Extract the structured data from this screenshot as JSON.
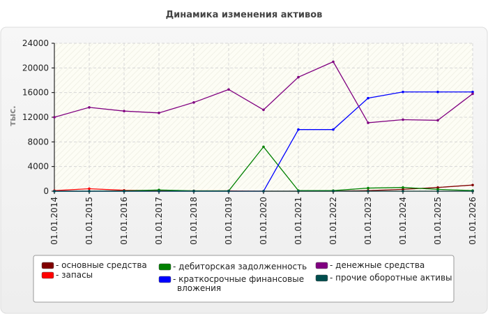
{
  "chart_data": {
    "type": "line",
    "title": "Динамика изменения активов",
    "ylabel": "тыс.",
    "xlabel": "",
    "ylim": [
      0,
      24000
    ],
    "yticks": [
      0,
      4000,
      8000,
      12000,
      16000,
      20000,
      24000
    ],
    "grid": true,
    "legend_position": "bottom",
    "categories": [
      "01.01.2014",
      "01.01.2015",
      "01.01.2016",
      "01.01.2017",
      "01.01.2018",
      "01.01.2019",
      "01.01.2020",
      "01.01.2021",
      "01.01.2022",
      "01.01.2023",
      "01.01.2024",
      "01.01.2025",
      "01.01.2026"
    ],
    "series": [
      {
        "name": "- основные средства",
        "color": "#800000",
        "values": [
          0,
          0,
          0,
          0,
          0,
          0,
          0,
          0,
          0,
          100,
          300,
          600,
          1000
        ]
      },
      {
        "name": "- запасы",
        "color": "#ff0000",
        "values": [
          100,
          400,
          150,
          100,
          50,
          50,
          0,
          0,
          0,
          0,
          0,
          0,
          0
        ]
      },
      {
        "name": "- дебиторская задолженность",
        "color": "#008000",
        "values": [
          0,
          0,
          50,
          200,
          50,
          50,
          7200,
          100,
          100,
          500,
          600,
          300,
          100
        ]
      },
      {
        "name": "- краткосрочные финансовые вложения",
        "color": "#0000ff",
        "values": [
          0,
          0,
          0,
          0,
          0,
          0,
          0,
          10000,
          10000,
          15100,
          16100,
          16100,
          16100
        ]
      },
      {
        "name": "- денежные средства",
        "color": "#800080",
        "values": [
          12000,
          13600,
          13000,
          12700,
          14400,
          16500,
          13200,
          18500,
          21000,
          11100,
          11600,
          11500,
          15800
        ]
      },
      {
        "name": "- прочие оборотные активы",
        "color": "#004d4d",
        "values": [
          0,
          0,
          0,
          0,
          0,
          0,
          0,
          0,
          0,
          0,
          0,
          0,
          0
        ]
      }
    ]
  }
}
